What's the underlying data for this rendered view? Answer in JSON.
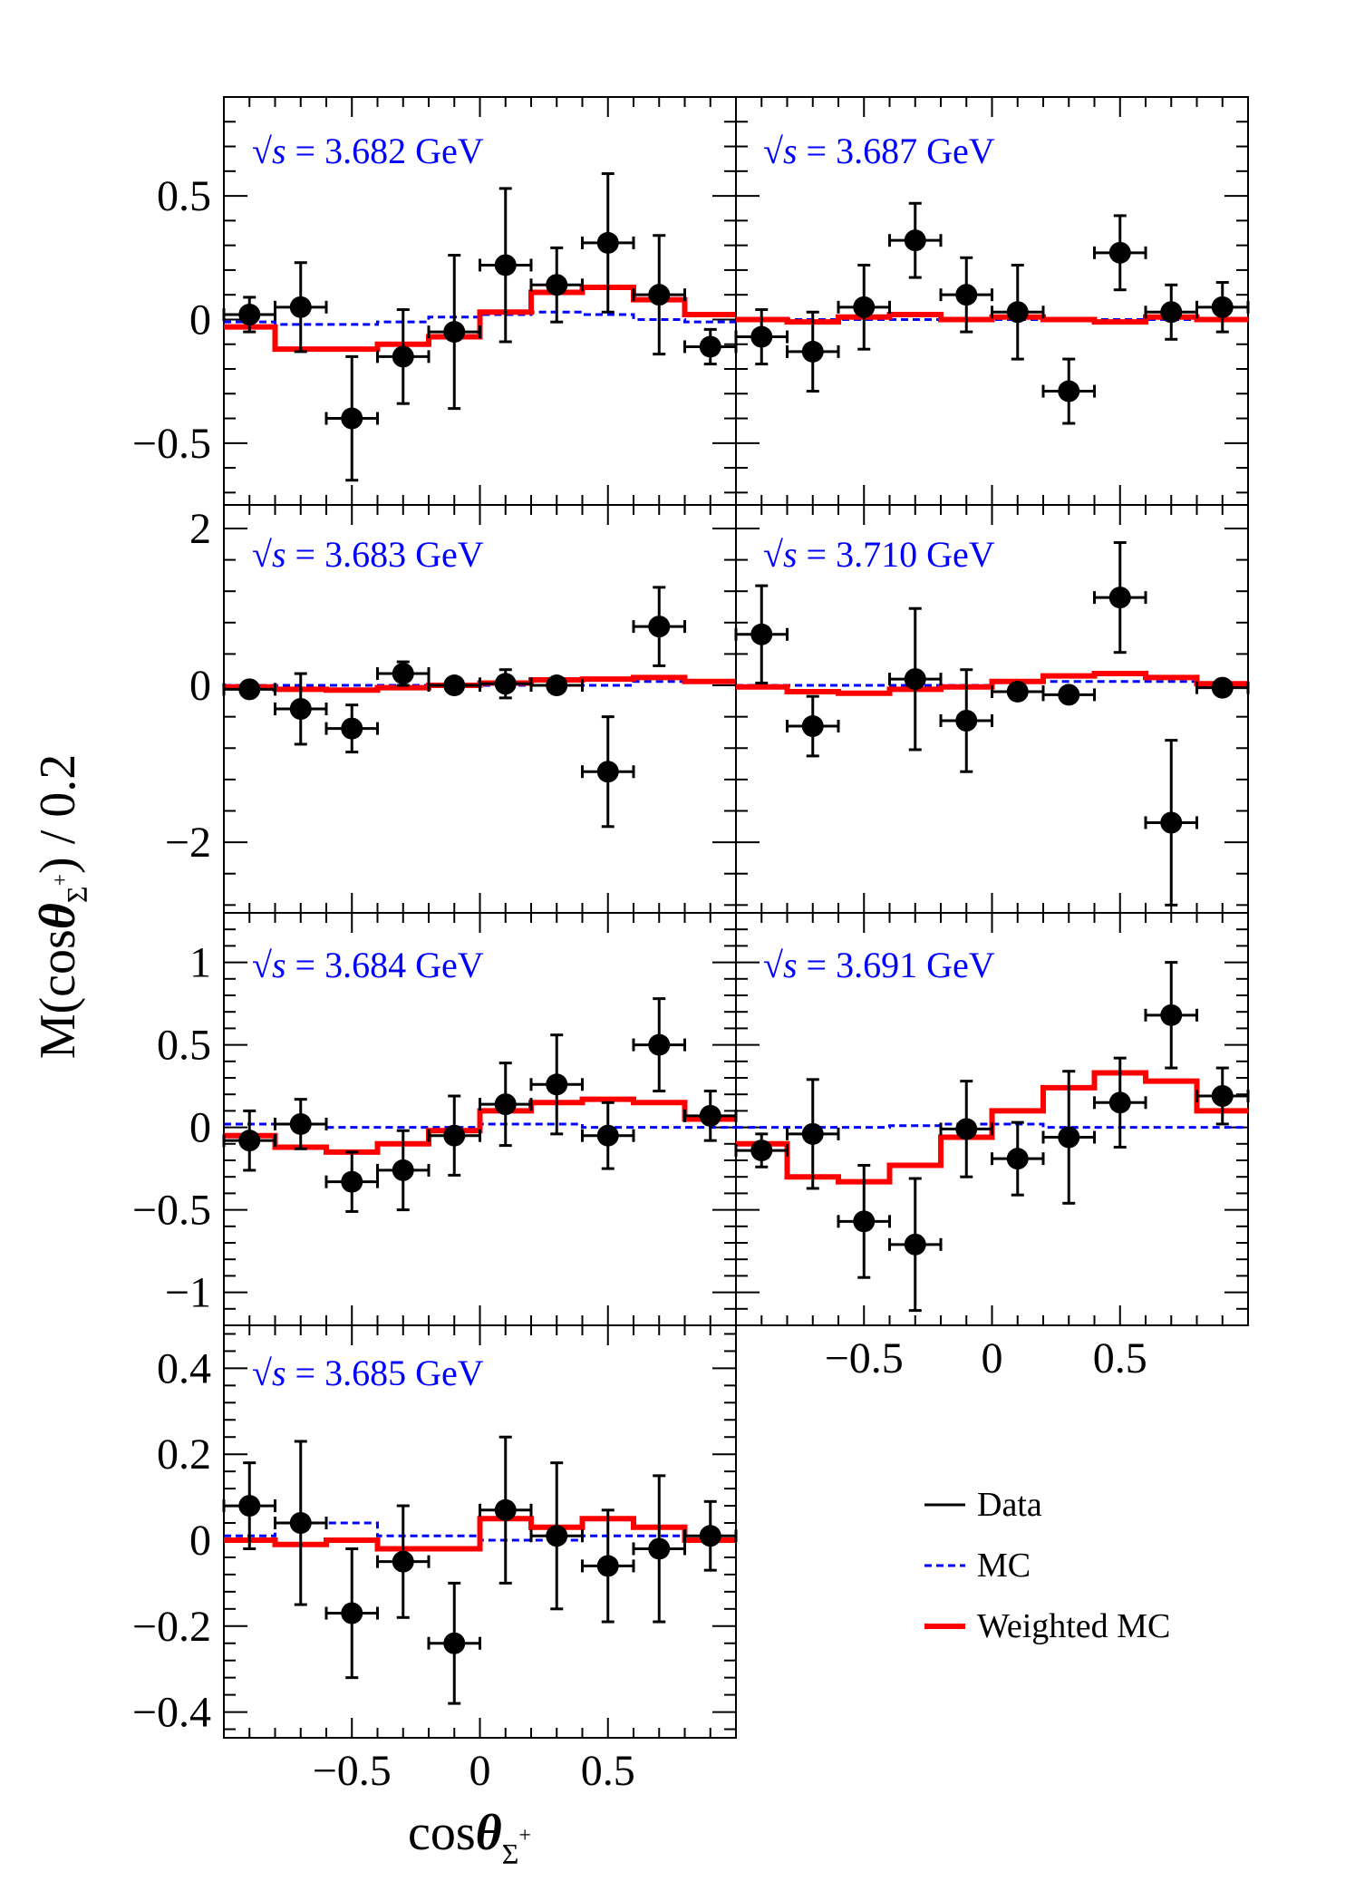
{
  "colors": {
    "data": "#000000",
    "mc": "#0000ff",
    "weighted_mc": "#ff0000",
    "panel_label": "#0000ff"
  },
  "axes": {
    "ylabel_main": "M(cos",
    "ylabel_theta": "θ",
    "ylabel_sub": "Σ",
    "ylabel_sup": "+",
    "ylabel_tail": ") / 0.2",
    "xlabel_main": "cos",
    "xlabel_theta": "θ",
    "xlabel_sub": "Σ",
    "xlabel_sup": "+",
    "x_ticks": [
      "−0.5",
      "0",
      "0.5"
    ]
  },
  "legend": {
    "items": [
      "Data",
      "MC",
      "Weighted MC"
    ]
  },
  "chart_data": [
    {
      "type": "scatter",
      "label": "3.682 GeV",
      "xlim": [
        -1,
        1
      ],
      "ylim": [
        -0.75,
        0.9
      ],
      "y_ticks": [
        "0.5",
        "0",
        "−0.5"
      ],
      "y_tick_values": [
        0.5,
        0,
        -0.5
      ],
      "x": [
        -0.9,
        -0.7,
        -0.5,
        -0.3,
        -0.1,
        0.1,
        0.3,
        0.5,
        0.7,
        0.9
      ],
      "data": [
        0.02,
        0.05,
        -0.4,
        -0.15,
        -0.05,
        0.22,
        0.14,
        0.31,
        0.1,
        -0.11
      ],
      "errors": [
        0.07,
        0.18,
        0.25,
        0.19,
        0.31,
        0.31,
        0.15,
        0.28,
        0.24,
        0.07
      ],
      "mc": [
        -0.01,
        -0.02,
        -0.02,
        -0.01,
        0.01,
        0.02,
        0.03,
        0.02,
        0.0,
        -0.01
      ],
      "weighted_mc": [
        -0.03,
        -0.12,
        -0.12,
        -0.1,
        -0.07,
        0.03,
        0.11,
        0.13,
        0.08,
        0.02
      ]
    },
    {
      "type": "scatter",
      "label": "3.687 GeV",
      "xlim": [
        -1,
        1
      ],
      "ylim": [
        -0.75,
        0.9
      ],
      "y_ticks": [],
      "y_tick_values": [
        0.5,
        0,
        -0.5
      ],
      "x": [
        -0.9,
        -0.7,
        -0.5,
        -0.3,
        -0.1,
        0.1,
        0.3,
        0.5,
        0.7,
        0.9
      ],
      "data": [
        -0.07,
        -0.13,
        0.05,
        0.32,
        0.1,
        0.03,
        -0.29,
        0.27,
        0.03,
        0.05
      ],
      "errors": [
        0.11,
        0.16,
        0.17,
        0.15,
        0.15,
        0.19,
        0.13,
        0.15,
        0.11,
        0.1
      ],
      "mc": [
        0.0,
        0.0,
        0.0,
        0.0,
        0.0,
        0.0,
        0.0,
        0.0,
        0.0,
        0.0
      ],
      "weighted_mc": [
        0.0,
        -0.01,
        0.01,
        0.02,
        0.0,
        0.01,
        0.0,
        -0.01,
        0.01,
        0.0
      ]
    },
    {
      "type": "scatter",
      "label": "3.683 GeV",
      "xlim": [
        -1,
        1
      ],
      "ylim": [
        -2.9,
        2.3
      ],
      "y_ticks": [
        "2",
        "0",
        "−2"
      ],
      "y_tick_values": [
        2,
        0,
        -2
      ],
      "x": [
        -0.9,
        -0.7,
        -0.5,
        -0.3,
        -0.1,
        0.1,
        0.3,
        0.5,
        0.7,
        0.9
      ],
      "data": [
        -0.05,
        -0.3,
        -0.55,
        0.15,
        0.0,
        0.02,
        0.0,
        -1.1,
        0.75,
        null
      ],
      "errors": [
        0.08,
        0.45,
        0.3,
        0.15,
        0.08,
        0.18,
        0.08,
        0.7,
        0.5,
        null
      ],
      "mc": [
        0.0,
        0.0,
        0.0,
        0.0,
        0.0,
        0.0,
        0.0,
        0.0,
        0.05,
        0.05
      ],
      "weighted_mc": [
        -0.02,
        -0.05,
        -0.06,
        -0.03,
        0.0,
        0.03,
        0.07,
        0.08,
        0.1,
        0.05
      ]
    },
    {
      "type": "scatter",
      "label": "3.710 GeV",
      "xlim": [
        -1,
        1
      ],
      "ylim": [
        -2.9,
        2.3
      ],
      "y_ticks": [],
      "y_tick_values": [
        2,
        0,
        -2
      ],
      "x": [
        -0.9,
        -0.7,
        -0.5,
        -0.3,
        -0.1,
        0.1,
        0.3,
        0.5,
        0.7,
        0.9
      ],
      "data": [
        0.65,
        -0.52,
        null,
        0.08,
        -0.45,
        -0.08,
        -0.12,
        1.12,
        -1.75,
        -0.03
      ],
      "errors": [
        0.62,
        0.38,
        null,
        0.9,
        0.65,
        0.07,
        0.08,
        0.7,
        1.05,
        0.07
      ],
      "mc": [
        0.0,
        0.0,
        0.0,
        0.0,
        0.0,
        0.05,
        0.05,
        0.05,
        0.05,
        0.0
      ],
      "weighted_mc": [
        -0.02,
        -0.08,
        -0.1,
        -0.05,
        -0.02,
        0.05,
        0.12,
        0.15,
        0.1,
        0.02
      ]
    },
    {
      "type": "scatter",
      "label": "3.684 GeV",
      "xlim": [
        -1,
        1
      ],
      "ylim": [
        -1.2,
        1.3
      ],
      "y_ticks": [
        "1",
        "0.5",
        "0",
        "−0.5",
        "−1"
      ],
      "y_tick_values": [
        1,
        0.5,
        0,
        -0.5,
        -1
      ],
      "x": [
        -0.9,
        -0.7,
        -0.5,
        -0.3,
        -0.1,
        0.1,
        0.3,
        0.5,
        0.7,
        0.9
      ],
      "data": [
        -0.08,
        0.02,
        -0.33,
        -0.26,
        -0.05,
        0.14,
        0.26,
        -0.05,
        0.5,
        0.07
      ],
      "errors": [
        0.18,
        0.15,
        0.18,
        0.24,
        0.24,
        0.25,
        0.3,
        0.2,
        0.28,
        0.15
      ],
      "mc": [
        0.02,
        0.02,
        0.0,
        0.0,
        0.0,
        0.02,
        0.02,
        0.0,
        0.0,
        0.0
      ],
      "weighted_mc": [
        -0.05,
        -0.12,
        -0.15,
        -0.1,
        -0.02,
        0.1,
        0.15,
        0.17,
        0.15,
        0.05
      ]
    },
    {
      "type": "scatter",
      "label": "3.691 GeV",
      "xlim": [
        -1,
        1
      ],
      "ylim": [
        -1.2,
        1.3
      ],
      "y_ticks": [],
      "y_tick_values": [
        1,
        0.5,
        0,
        -0.5,
        -1
      ],
      "x": [
        -0.9,
        -0.7,
        -0.5,
        -0.3,
        -0.1,
        0.1,
        0.3,
        0.5,
        0.7,
        0.9
      ],
      "data": [
        -0.14,
        -0.04,
        -0.57,
        -0.71,
        -0.01,
        -0.19,
        -0.06,
        0.15,
        0.68,
        0.19
      ],
      "errors": [
        0.1,
        0.33,
        0.34,
        0.4,
        0.29,
        0.22,
        0.4,
        0.27,
        0.32,
        0.17
      ],
      "mc": [
        0.0,
        0.0,
        0.0,
        0.01,
        0.02,
        0.02,
        0.0,
        0.0,
        0.0,
        0.0
      ],
      "weighted_mc": [
        -0.1,
        -0.3,
        -0.33,
        -0.23,
        -0.06,
        0.1,
        0.24,
        0.33,
        0.28,
        0.1
      ]
    },
    {
      "type": "scatter",
      "label": "3.685 GeV",
      "xlim": [
        -1,
        1
      ],
      "ylim": [
        -0.46,
        0.5
      ],
      "y_ticks": [
        "0.4",
        "0.2",
        "0",
        "−0.2",
        "−0.4"
      ],
      "y_tick_values": [
        0.4,
        0.2,
        0,
        -0.2,
        -0.4
      ],
      "x": [
        -0.9,
        -0.7,
        -0.5,
        -0.3,
        -0.1,
        0.1,
        0.3,
        0.5,
        0.7,
        0.9
      ],
      "data": [
        0.08,
        0.04,
        -0.17,
        -0.05,
        -0.24,
        0.07,
        0.01,
        -0.06,
        -0.02,
        0.01
      ],
      "errors": [
        0.1,
        0.19,
        0.15,
        0.13,
        0.14,
        0.17,
        0.17,
        0.13,
        0.17,
        0.08
      ],
      "mc": [
        0.01,
        0.04,
        0.04,
        0.01,
        0.01,
        0.0,
        0.0,
        0.01,
        0.01,
        0.0
      ],
      "weighted_mc": [
        0.0,
        -0.01,
        0.0,
        -0.02,
        -0.02,
        0.05,
        0.03,
        0.05,
        0.03,
        0.0
      ]
    }
  ]
}
